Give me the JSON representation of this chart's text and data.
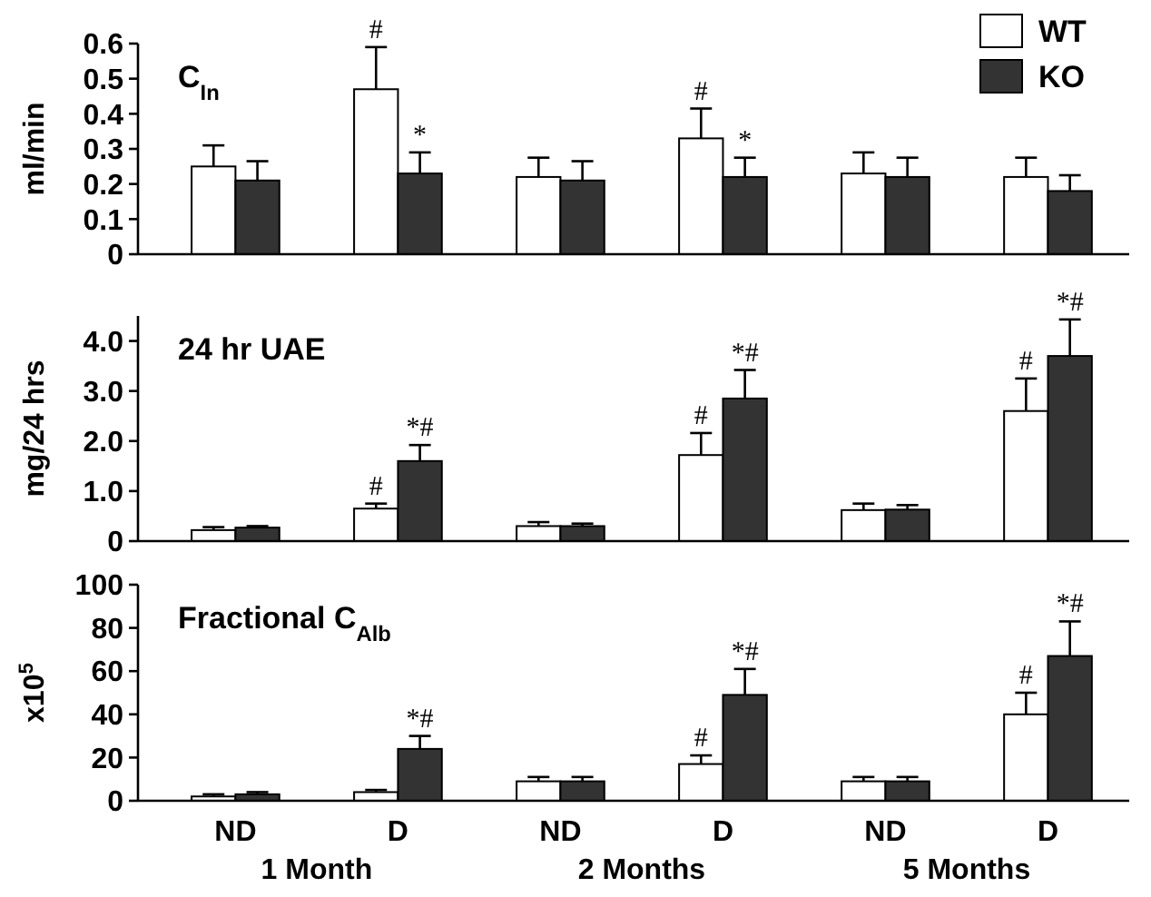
{
  "chart_data": [
    {
      "type": "bar",
      "title": "C$_{In}$",
      "ylabel": "ml/min",
      "categories": [
        null,
        null,
        null,
        null,
        null,
        null
      ],
      "ylim": [
        0,
        0.6
      ],
      "yticks": [
        0,
        0.1,
        0.2,
        0.3,
        0.4,
        0.5,
        0.6
      ],
      "tick_labels": "y",
      "legend": "top right",
      "series": [
        {
          "name": "WT",
          "color": "#ffffff",
          "values": [
            0.25,
            0.47,
            0.22,
            0.33,
            0.23,
            0.22
          ],
          "errors": [
            [
              0.25,
              0.31
            ],
            [
              0.47,
              0.59
            ],
            [
              0.22,
              0.275
            ],
            [
              0.33,
              0.415
            ],
            [
              0.23,
              0.29
            ],
            [
              0.22,
              0.275
            ]
          ],
          "value_labels": [
            null,
            "#",
            null,
            "#",
            null,
            null
          ]
        },
        {
          "name": "KO",
          "color": "#333333",
          "values": [
            0.21,
            0.23,
            0.21,
            0.22,
            0.22,
            0.18
          ],
          "errors": [
            [
              0.21,
              0.265
            ],
            [
              0.23,
              0.29
            ],
            [
              0.21,
              0.265
            ],
            [
              0.22,
              0.275
            ],
            [
              0.22,
              0.275
            ],
            [
              0.18,
              0.225
            ]
          ],
          "value_labels": [
            null,
            "*",
            null,
            "*",
            null,
            null
          ]
        }
      ]
    },
    {
      "type": "bar",
      "title": "24 hr UAE",
      "ylabel": "mg/24 hrs",
      "categories": [
        null,
        null,
        null,
        null,
        null,
        null
      ],
      "ylim": [
        0,
        4.5
      ],
      "yticks": [
        0,
        {
          "value": 1,
          "label": "1.0"
        },
        {
          "value": 2,
          "label": "2.0"
        },
        {
          "value": 3,
          "label": "3.0"
        },
        {
          "value": 4,
          "label": "4.0"
        }
      ],
      "tick_labels": "y",
      "series": [
        {
          "color": "#ffffff",
          "values": [
            0.22,
            0.65,
            0.3,
            1.72,
            0.62,
            2.6
          ],
          "errors": [
            [
              0.22,
              0.28
            ],
            [
              0.65,
              0.75
            ],
            [
              0.3,
              0.38
            ],
            [
              1.72,
              2.16
            ],
            [
              0.62,
              0.75
            ],
            [
              2.6,
              3.25
            ]
          ],
          "value_labels": [
            null,
            "#",
            null,
            "#",
            null,
            "#"
          ]
        },
        {
          "color": "#333333",
          "values": [
            0.27,
            1.6,
            0.3,
            2.85,
            0.63,
            3.7
          ],
          "errors": [
            [
              0.27,
              0.3
            ],
            [
              1.6,
              1.92
            ],
            [
              0.3,
              0.35
            ],
            [
              2.85,
              3.42
            ],
            [
              0.63,
              0.72
            ],
            [
              3.7,
              4.43
            ]
          ],
          "value_labels": [
            null,
            "*#",
            null,
            "*#",
            null,
            "*#"
          ]
        }
      ]
    },
    {
      "type": "bar",
      "title": "Fractional C$_{Alb}$",
      "ylabel": "x10$^{5}$",
      "categories": [
        "ND",
        "D",
        "ND",
        "D",
        "ND",
        "D"
      ],
      "ylim": [
        0,
        100
      ],
      "yticks": [
        0,
        20,
        40,
        60,
        80,
        100
      ],
      "annotations": [
        "1 Month",
        "2 Months",
        "5 Months"
      ],
      "series": [
        {
          "color": "#ffffff",
          "values": [
            2,
            4,
            9,
            17,
            9,
            40
          ],
          "errors": [
            [
              2,
              3
            ],
            [
              4,
              5
            ],
            [
              9,
              11
            ],
            [
              17,
              21
            ],
            [
              9,
              11
            ],
            [
              40,
              50
            ]
          ],
          "value_labels": [
            null,
            null,
            null,
            "#",
            null,
            "#"
          ]
        },
        {
          "color": "#333333",
          "values": [
            3,
            24,
            9,
            49,
            9,
            67
          ],
          "errors": [
            [
              3,
              4
            ],
            [
              24,
              30
            ],
            [
              9,
              11
            ],
            [
              49,
              61
            ],
            [
              9,
              11
            ],
            [
              67,
              83
            ]
          ],
          "value_labels": [
            null,
            "*#",
            null,
            "*#",
            null,
            "*#"
          ]
        }
      ]
    }
  ]
}
